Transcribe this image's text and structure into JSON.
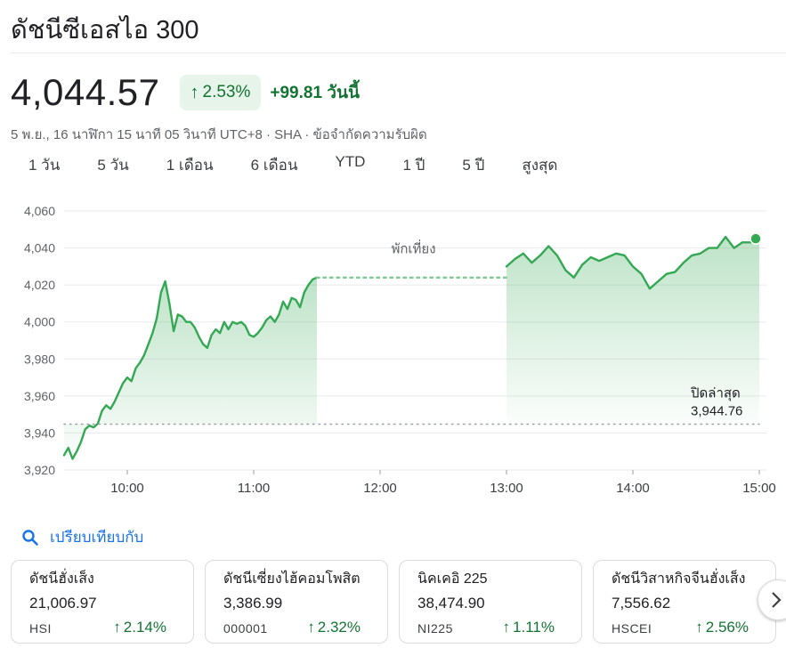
{
  "title": "ดัชนีซีเอสไอ 300",
  "price": "4,044.57",
  "change_pct": "2.53%",
  "change_abs": "+99.81 วันนี้",
  "meta": "5 พ.ย., 16 นาฬิกา 15 นาที 05 วินาที UTC+8 · SHA · ข้อจำกัดความรับผิด",
  "tabs": [
    "1 วัน",
    "5 วัน",
    "1 เดือน",
    "6 เดือน",
    "YTD",
    "1 ปี",
    "5 ปี",
    "สูงสุด"
  ],
  "active_tab": 0,
  "colors": {
    "up": "#137333",
    "line": "#34a853",
    "accent": "#1a73e8"
  },
  "chart_data": {
    "type": "line",
    "ylim": [
      3920,
      4060
    ],
    "y_ticks": [
      4060,
      4040,
      4020,
      4000,
      3980,
      3960,
      3940,
      3920
    ],
    "y_tick_labels": [
      "4,060",
      "4,040",
      "4,020",
      "4,000",
      "3,980",
      "3,960",
      "3,940",
      "3,920"
    ],
    "x_range": [
      "09:30",
      "15:00"
    ],
    "x_ticks": [
      "10:00",
      "11:00",
      "12:00",
      "13:00",
      "14:00",
      "15:00"
    ],
    "x_tick_labels": [
      "10:00",
      "11:00",
      "12:00",
      "13:00",
      "14:00",
      "15:00"
    ],
    "previous_close": 3944.76,
    "previous_close_label": "ปิดล่าสุด",
    "previous_close_value": "3,944.76",
    "lunch_break_label": "พักเที่ยง",
    "lunch_break": [
      "11:30",
      "13:00"
    ],
    "series": [
      {
        "x": [
          "09:30",
          "09:32",
          "09:34",
          "09:36",
          "09:38",
          "09:40",
          "09:42",
          "09:44",
          "09:46",
          "09:48",
          "09:50",
          "09:52",
          "09:54",
          "09:56",
          "09:58",
          "10:00",
          "10:02",
          "10:04",
          "10:06",
          "10:08",
          "10:10",
          "10:12",
          "10:14",
          "10:16",
          "10:18",
          "10:20",
          "10:22",
          "10:24",
          "10:26",
          "10:28",
          "10:30",
          "10:32",
          "10:34",
          "10:36",
          "10:38",
          "10:40",
          "10:42",
          "10:44",
          "10:46",
          "10:48",
          "10:50",
          "10:52",
          "10:54",
          "10:56",
          "10:58",
          "11:00",
          "11:02",
          "11:04",
          "11:06",
          "11:08",
          "11:10",
          "11:12",
          "11:14",
          "11:16",
          "11:18",
          "11:20",
          "11:22",
          "11:24",
          "11:26",
          "11:28",
          "11:30"
        ],
        "values": [
          3928,
          3932,
          3926,
          3930,
          3935,
          3942,
          3944,
          3943,
          3945,
          3952,
          3955,
          3953,
          3957,
          3962,
          3967,
          3970,
          3968,
          3975,
          3978,
          3982,
          3988,
          3994,
          4002,
          4016,
          4022,
          4010,
          3995,
          4004,
          4003,
          4000,
          4000,
          3997,
          3992,
          3988,
          3986,
          3993,
          3996,
          3994,
          4000,
          3996,
          4000,
          3999,
          4000,
          3998,
          3993,
          3992,
          3994,
          3997,
          4001,
          4003,
          4000,
          4004,
          4011,
          4007,
          4013,
          4012,
          4008,
          4016,
          4020,
          4023,
          4024
        ]
      },
      {
        "x": [
          "13:00",
          "13:04",
          "13:08",
          "13:12",
          "13:16",
          "13:20",
          "13:24",
          "13:28",
          "13:32",
          "13:36",
          "13:40",
          "13:44",
          "13:48",
          "13:52",
          "13:56",
          "14:00",
          "14:04",
          "14:08",
          "14:12",
          "14:16",
          "14:20",
          "14:24",
          "14:28",
          "14:32",
          "14:36",
          "14:40",
          "14:44",
          "14:48",
          "14:52",
          "14:56",
          "15:00"
        ],
        "values": [
          4030,
          4034,
          4037,
          4032,
          4036,
          4041,
          4036,
          4028,
          4024,
          4031,
          4035,
          4033,
          4035,
          4037,
          4036,
          4030,
          4026,
          4018,
          4022,
          4026,
          4027,
          4032,
          4036,
          4037,
          4040,
          4040,
          4046,
          4040,
          4043,
          4043,
          4045
        ]
      }
    ]
  },
  "compare": {
    "label": "เปรียบเทียบกับ",
    "icon": "search-icon"
  },
  "cards": [
    {
      "name": "ดัชนีฮั่งเส็ง",
      "value": "21,006.97",
      "symbol": "HSI",
      "change": "2.14%"
    },
    {
      "name": "ดัชนีเซี่ยงไฮ้คอมโพสิต",
      "value": "3,386.99",
      "symbol": "000001",
      "change": "2.32%"
    },
    {
      "name": "นิคเคอิ 225",
      "value": "38,474.90",
      "symbol": "NI225",
      "change": "1.11%"
    },
    {
      "name": "ดัชนีวิสาหกิจจีนฮั่งเส็ง",
      "value": "7,556.62",
      "symbol": "HSCEI",
      "change": "2.56%"
    }
  ]
}
